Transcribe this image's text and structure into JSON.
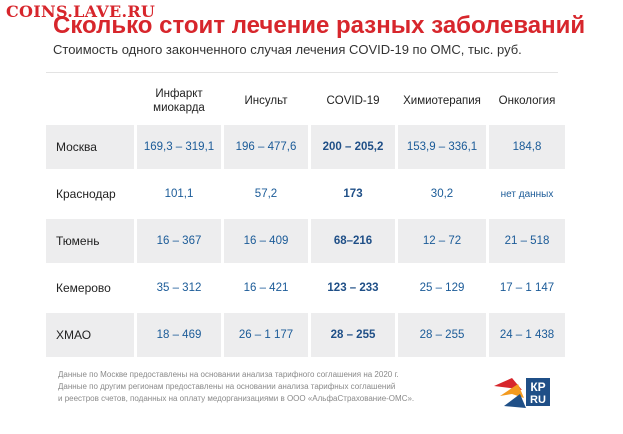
{
  "watermark": "COINS.LAVE.RU",
  "title": "Сколько стоит лечение разных заболеваний",
  "subtitle": "Стоимость одного законченного случая лечения  COVID-19 по ОМС, тыс. руб.",
  "table": {
    "headers": [
      "",
      "Инфаркт миокарда",
      "Инсульт",
      "COVID-19",
      "Химиотерапия",
      "Онкология"
    ],
    "rows": [
      {
        "region": "Москва",
        "cells": [
          "169,3 – 319,1",
          "196 – 477,6",
          "200 – 205,2",
          "153,9 – 336,1",
          "184,8"
        ]
      },
      {
        "region": "Краснодар",
        "cells": [
          "101,1",
          "57,2",
          "173",
          "30,2",
          "нет данных"
        ]
      },
      {
        "region": "Тюмень",
        "cells": [
          "16 – 367",
          "16 – 409",
          "68–216",
          "12 – 72",
          "21 – 518"
        ]
      },
      {
        "region": "Кемерово",
        "cells": [
          "35 – 312",
          "16 – 421",
          "123 – 233",
          "25 – 129",
          "17 – 1 147"
        ]
      },
      {
        "region": "ХМАО",
        "cells": [
          "18 – 469",
          "26 – 1 177",
          "28 – 255",
          "28 – 255",
          "24 – 1 438"
        ]
      }
    ]
  },
  "footnote": [
    "Данные по Москве предоставлены на основании анализа тарифного соглашения на 2020 г.",
    "Данные по другим регионам предоставлены на основании анализа тарифных соглашений",
    "и реестров счетов, поданных на оплату медорганизациями в ООО «АльфаСтрахование-ОМС»."
  ],
  "logo": {
    "line1": "КР",
    "line2": "RU"
  },
  "colors": {
    "title": "#d7262c",
    "values": "#1b5b98",
    "shade": "#ededee"
  }
}
